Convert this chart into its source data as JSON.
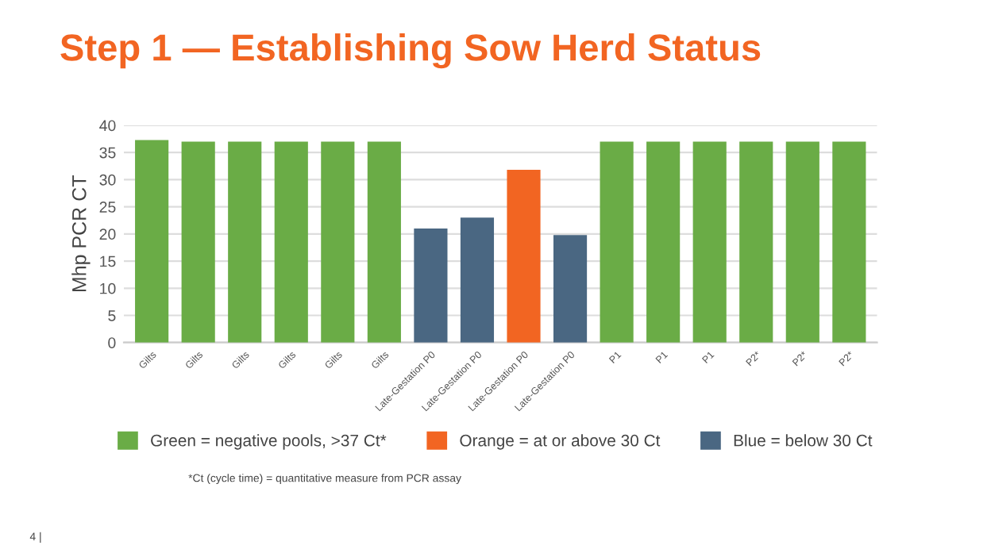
{
  "chart_data": {
    "type": "bar",
    "title": "Step 1 — Establishing Sow Herd Status",
    "ylabel": "Mhp PCR CT",
    "categories": [
      "Gilts",
      "Gilts",
      "Gilts",
      "Gilts",
      "Gilts",
      "Gilts",
      "Late-Gestation P0",
      "Late-Gestation P0",
      "Late-Gestation P0",
      "Late-Gestation P0",
      "P1",
      "P1",
      "P1",
      "P2*",
      "P2*",
      "P2*"
    ],
    "series": [
      {
        "name": "Green = negative pools, >37 Ct*",
        "color": "#6aac46",
        "values": [
          37.3,
          37,
          37,
          37,
          37,
          37,
          null,
          null,
          null,
          null,
          37,
          37,
          37,
          37,
          37,
          37
        ]
      },
      {
        "name": "Orange = at or above 30 Ct",
        "color": "#f26522",
        "values": [
          null,
          null,
          null,
          null,
          null,
          null,
          null,
          null,
          31.8,
          null,
          null,
          null,
          null,
          null,
          null,
          null
        ]
      },
      {
        "name": "Blue = below 30 Ct",
        "color": "#4a6782",
        "values": [
          null,
          null,
          null,
          null,
          null,
          null,
          21,
          23,
          null,
          19.8,
          null,
          null,
          null,
          null,
          null,
          null
        ]
      }
    ],
    "ylim": [
      0,
      40
    ],
    "yticks": [
      0,
      5,
      10,
      15,
      20,
      25,
      30,
      35,
      40
    ],
    "grid": "y",
    "legend": "bottom",
    "annotations": [
      "*Ct (cycle time) = quantitative measure from PCR assay",
      "4 |"
    ]
  }
}
